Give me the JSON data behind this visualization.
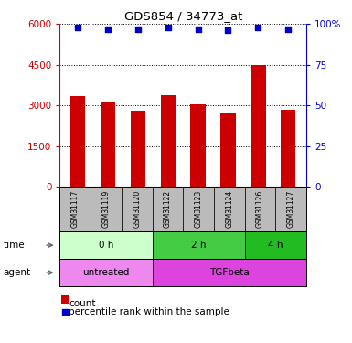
{
  "title": "GDS854 / 34773_at",
  "samples": [
    "GSM31117",
    "GSM31119",
    "GSM31120",
    "GSM31122",
    "GSM31123",
    "GSM31124",
    "GSM31126",
    "GSM31127"
  ],
  "counts": [
    3350,
    3100,
    2800,
    3380,
    3050,
    2700,
    4480,
    2850
  ],
  "percentiles": [
    98,
    97,
    97,
    98,
    97,
    96,
    98,
    97
  ],
  "ylim_left": [
    0,
    6000
  ],
  "ylim_right": [
    0,
    100
  ],
  "yticks_left": [
    0,
    1500,
    3000,
    4500,
    6000
  ],
  "yticks_right": [
    0,
    25,
    50,
    75,
    100
  ],
  "bar_color": "#cc0000",
  "dot_color": "#0000cc",
  "time_groups": [
    {
      "label": "0 h",
      "start": 0,
      "end": 3,
      "color": "#ccffcc"
    },
    {
      "label": "2 h",
      "start": 3,
      "end": 6,
      "color": "#44cc44"
    },
    {
      "label": "4 h",
      "start": 6,
      "end": 8,
      "color": "#22bb22"
    }
  ],
  "agent_groups": [
    {
      "label": "untreated",
      "start": 0,
      "end": 3,
      "color": "#ee88ee"
    },
    {
      "label": "TGFbeta",
      "start": 3,
      "end": 8,
      "color": "#dd44dd"
    }
  ],
  "legend_count_label": "count",
  "legend_pct_label": "percentile rank within the sample",
  "sample_cell_color": "#bbbbbb",
  "left_yaxis_color": "#cc0000",
  "right_yaxis_color": "#0000cc",
  "bar_width": 0.5
}
